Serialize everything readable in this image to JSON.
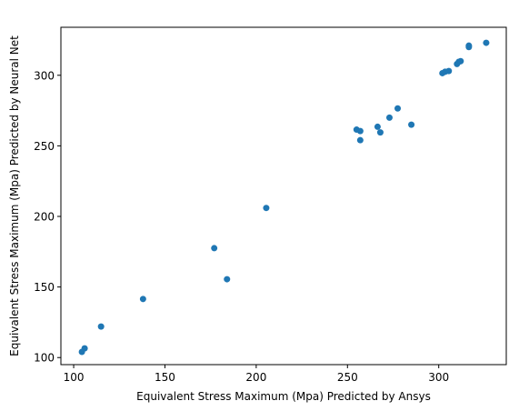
{
  "chart_data": {
    "type": "scatter",
    "title": "",
    "xlabel": "Equivalent Stress Maximum (Mpa) Predicted by Ansys",
    "ylabel": "Equivalent Stress Maximum (Mpa) Predicted by Neural Net",
    "xlim": [
      93,
      337
    ],
    "ylim": [
      95,
      334
    ],
    "xticks": [
      100,
      150,
      200,
      250,
      300
    ],
    "yticks": [
      100,
      150,
      200,
      250,
      300
    ],
    "grid": false,
    "marker_color": "#1f77b4",
    "points": [
      {
        "x": 104.5,
        "y": 104.0
      },
      {
        "x": 106.0,
        "y": 106.5
      },
      {
        "x": 115.0,
        "y": 122.0
      },
      {
        "x": 138.0,
        "y": 141.5
      },
      {
        "x": 177.0,
        "y": 177.5
      },
      {
        "x": 184.0,
        "y": 155.5
      },
      {
        "x": 205.5,
        "y": 206.0
      },
      {
        "x": 255.0,
        "y": 261.5
      },
      {
        "x": 257.0,
        "y": 260.5
      },
      {
        "x": 257.0,
        "y": 254.0
      },
      {
        "x": 266.5,
        "y": 263.5
      },
      {
        "x": 268.0,
        "y": 259.5
      },
      {
        "x": 273.0,
        "y": 270.0
      },
      {
        "x": 277.5,
        "y": 276.5
      },
      {
        "x": 285.0,
        "y": 265.0
      },
      {
        "x": 302.0,
        "y": 301.5
      },
      {
        "x": 303.5,
        "y": 302.5
      },
      {
        "x": 305.5,
        "y": 303.0
      },
      {
        "x": 310.0,
        "y": 308.0
      },
      {
        "x": 311.0,
        "y": 309.5
      },
      {
        "x": 312.0,
        "y": 310.0
      },
      {
        "x": 316.5,
        "y": 320.0
      },
      {
        "x": 316.5,
        "y": 321.0
      },
      {
        "x": 326.0,
        "y": 323.0
      }
    ]
  }
}
